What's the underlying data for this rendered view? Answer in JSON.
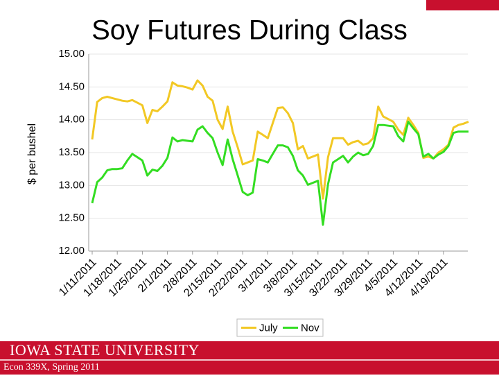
{
  "chart_data": {
    "type": "line",
    "title": "Soy Futures During Class",
    "y_label": "$ per bushel",
    "categories": [
      "1/11/2011",
      null,
      null,
      null,
      null,
      "1/18/2011",
      null,
      null,
      null,
      null,
      "1/25/2011",
      null,
      null,
      null,
      null,
      "2/1/2011",
      null,
      null,
      null,
      null,
      "2/8/2011",
      null,
      null,
      null,
      null,
      "2/15/2011",
      null,
      null,
      null,
      null,
      "2/22/2011",
      null,
      null,
      null,
      null,
      "3/1/2011",
      null,
      null,
      null,
      null,
      "3/8/2011",
      null,
      null,
      null,
      null,
      "3/15/2011",
      null,
      null,
      null,
      null,
      "3/22/2011",
      null,
      null,
      null,
      null,
      "3/29/2011",
      null,
      null,
      null,
      null,
      "4/5/2011",
      null,
      null,
      null,
      null,
      "4/12/2011",
      null,
      null,
      null,
      null,
      "4/19/2011",
      null,
      null,
      null,
      null,
      null
    ],
    "series": [
      {
        "name": "July",
        "color": "#f2c824",
        "values": [
          13.7,
          14.27,
          14.33,
          14.35,
          14.33,
          14.31,
          14.29,
          14.28,
          14.3,
          14.26,
          14.22,
          13.95,
          14.15,
          14.13,
          14.2,
          14.28,
          14.57,
          14.52,
          14.51,
          14.49,
          14.46,
          14.6,
          14.52,
          14.35,
          14.29,
          14.0,
          13.86,
          14.2,
          13.82,
          13.58,
          13.32,
          13.35,
          13.38,
          13.82,
          13.77,
          13.72,
          13.95,
          14.18,
          14.19,
          14.1,
          13.95,
          13.55,
          13.6,
          13.41,
          13.44,
          13.47,
          12.8,
          13.43,
          13.72,
          13.72,
          13.72,
          13.62,
          13.66,
          13.68,
          13.62,
          13.64,
          13.72,
          14.2,
          14.05,
          14.01,
          13.97,
          13.85,
          13.77,
          14.03,
          13.92,
          13.8,
          13.42,
          13.44,
          13.41,
          13.5,
          13.55,
          13.62,
          13.88,
          13.92,
          13.94,
          13.97
        ]
      },
      {
        "name": "Nov",
        "color": "#33dd22",
        "values": [
          12.73,
          13.05,
          13.12,
          13.23,
          13.25,
          13.25,
          13.26,
          13.38,
          13.48,
          13.43,
          13.38,
          13.15,
          13.24,
          13.22,
          13.3,
          13.42,
          13.73,
          13.67,
          13.69,
          13.68,
          13.67,
          13.85,
          13.9,
          13.8,
          13.72,
          13.5,
          13.31,
          13.7,
          13.4,
          13.15,
          12.9,
          12.85,
          12.89,
          13.4,
          13.38,
          13.35,
          13.48,
          13.61,
          13.61,
          13.58,
          13.45,
          13.23,
          13.15,
          13.01,
          13.04,
          13.07,
          12.4,
          13.02,
          13.35,
          13.4,
          13.45,
          13.35,
          13.44,
          13.5,
          13.46,
          13.48,
          13.6,
          13.92,
          13.92,
          13.91,
          13.9,
          13.75,
          13.67,
          13.97,
          13.87,
          13.78,
          13.44,
          13.48,
          13.41,
          13.47,
          13.51,
          13.6,
          13.8,
          13.82,
          13.82,
          13.82
        ]
      }
    ],
    "ylim": [
      12,
      15
    ],
    "yticks": [
      {
        "value": 12,
        "label": "12.00"
      },
      {
        "value": 12.5,
        "label": "12.50"
      },
      {
        "value": 13,
        "label": "13.00"
      },
      {
        "value": 13.5,
        "label": "13.50"
      },
      {
        "value": 14,
        "label": "14.00"
      },
      {
        "value": 14.5,
        "label": "14.50"
      },
      {
        "value": 15,
        "label": "15.00"
      }
    ],
    "grid": true,
    "legend": "bottom"
  },
  "footer": {
    "university": "Iowa State University",
    "course": "Econ 339X, Spring 2011"
  }
}
